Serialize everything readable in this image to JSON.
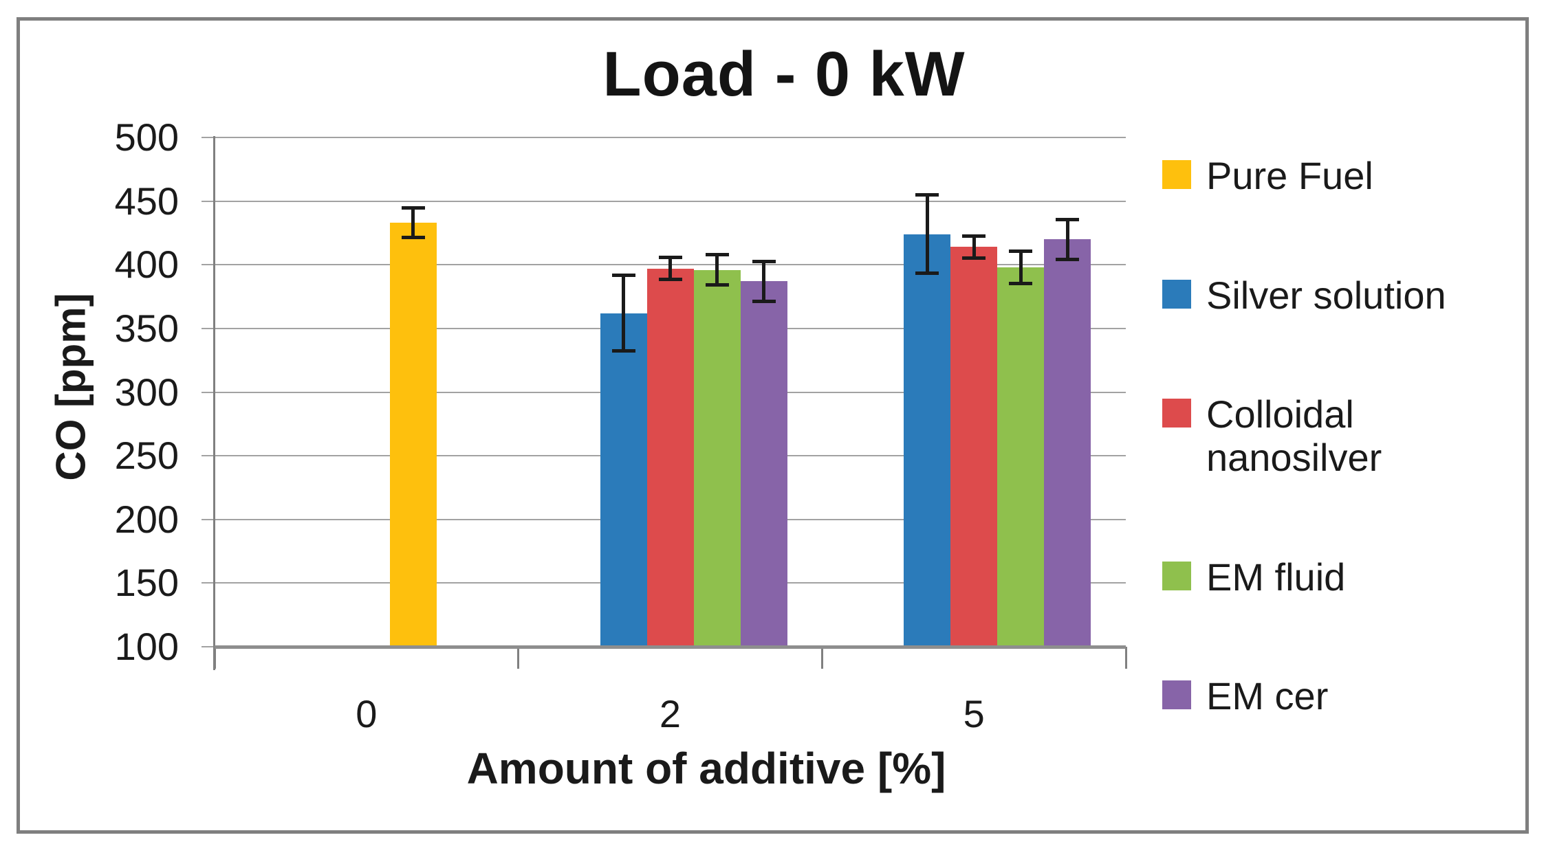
{
  "title": "Load - 0 kW",
  "axes": {
    "y_label": "CO [ppm]",
    "x_label": "Amount of additive [%]",
    "y_tick_labels": [
      "500",
      "450",
      "400",
      "350",
      "300",
      "250",
      "200",
      "150",
      "100"
    ],
    "x_tick_labels": [
      "0",
      "2",
      "5"
    ]
  },
  "palette": {
    "frame": "#7f7f7f",
    "gridline": "#a2a2a2",
    "axis_line": "#808080",
    "error_bar": "#1a1a1a",
    "text": "#1a1a1a",
    "background": "#ffffff"
  },
  "chart_data": {
    "type": "bar",
    "title": "Load - 0 kW",
    "xlabel": "Amount of additive [%]",
    "ylabel": "CO [ppm]",
    "ylim": [
      100,
      500
    ],
    "ytick_step": 50,
    "grid": true,
    "error_bars": true,
    "legend_position": "right",
    "categories": [
      "0",
      "2",
      "5"
    ],
    "slots_per_category": 5,
    "series": [
      {
        "name": "Pure Fuel",
        "color": "#fec00d",
        "values": [
          433,
          null,
          null
        ],
        "errors": [
          12,
          null,
          null
        ],
        "slots": [
          4,
          null,
          null
        ]
      },
      {
        "name": "Silver solution",
        "color": "#2b7bba",
        "values": [
          null,
          362,
          424
        ],
        "errors": [
          null,
          30,
          31
        ],
        "slots": [
          null,
          2,
          2
        ]
      },
      {
        "name": "Colloidal nanosilver",
        "color": "#dd4b4c",
        "values": [
          null,
          397,
          414
        ],
        "errors": [
          null,
          9,
          9
        ],
        "slots": [
          null,
          3,
          3
        ]
      },
      {
        "name": "EM fluid",
        "color": "#8fc04d",
        "values": [
          null,
          396,
          398
        ],
        "errors": [
          null,
          12,
          13
        ],
        "slots": [
          null,
          4,
          4
        ]
      },
      {
        "name": "EM cer",
        "color": "#8764a8",
        "values": [
          null,
          387,
          420
        ],
        "errors": [
          null,
          16,
          16
        ],
        "slots": [
          null,
          5,
          5
        ]
      }
    ]
  }
}
